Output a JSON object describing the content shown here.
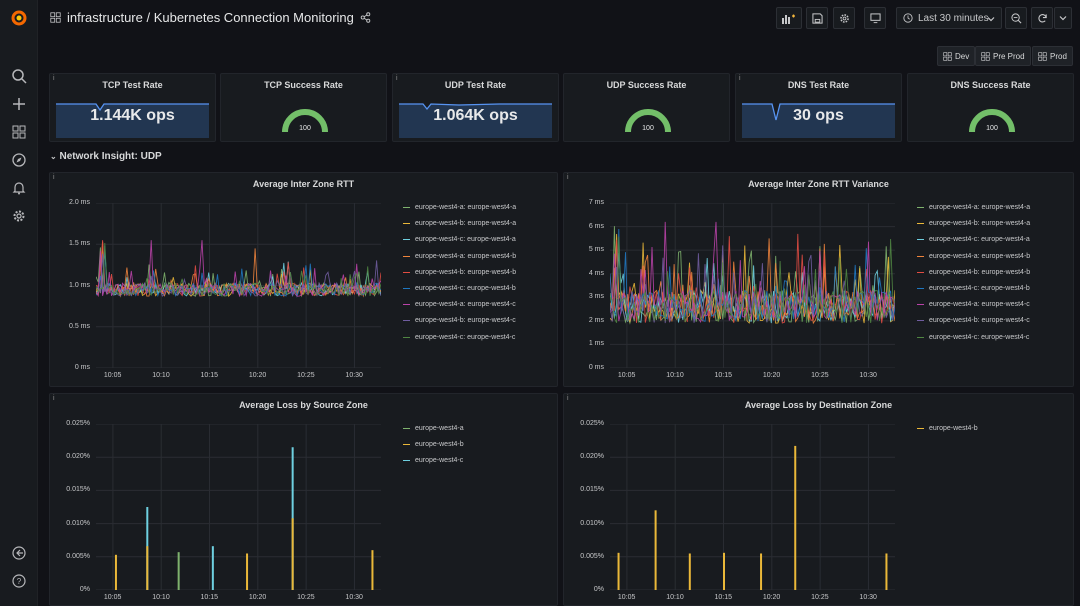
{
  "header": {
    "breadcrumb": "infrastructure / Kubernetes Connection Monitoring",
    "time_range": "Last 30 minutes"
  },
  "env_buttons": [
    "Dev",
    "Pre Prod",
    "Prod"
  ],
  "stat_panels": [
    {
      "title": "TCP Test Rate",
      "value": "1.144K ops",
      "kind": "sparkline"
    },
    {
      "title": "TCP Success Rate",
      "value": "100",
      "kind": "gauge"
    },
    {
      "title": "UDP Test Rate",
      "value": "1.064K ops",
      "kind": "sparkline"
    },
    {
      "title": "UDP Success Rate",
      "value": "100",
      "kind": "gauge"
    },
    {
      "title": "DNS Test Rate",
      "value": "30 ops",
      "kind": "sparkline"
    },
    {
      "title": "DNS Success Rate",
      "value": "100",
      "kind": "gauge"
    }
  ],
  "row": {
    "title": "Network Insight: UDP"
  },
  "colors": {
    "green": "#7eb26d",
    "yellow": "#eab839",
    "cyan": "#6ed0e0",
    "orange": "#ef843c",
    "red": "#e24d42",
    "blue": "#1f78c1",
    "pink": "#ba43a9",
    "violet": "#705da0",
    "olive": "#508642",
    "gauge": "#73bf69",
    "accent_blue": "#5794f2"
  },
  "chart_data": [
    {
      "type": "line",
      "title": "Average Inter Zone RTT",
      "yticks": [
        "2.0 ms",
        "1.5 ms",
        "1.0 ms",
        "0.5 ms",
        "0 ms"
      ],
      "ylim": [
        0,
        2.0
      ],
      "xticks": [
        "10:05",
        "10:10",
        "10:15",
        "10:20",
        "10:25",
        "10:30"
      ],
      "series": [
        {
          "name": "europe-west4-a: europe-west4-a",
          "color": "#7eb26d"
        },
        {
          "name": "europe-west4-b: europe-west4-a",
          "color": "#eab839"
        },
        {
          "name": "europe-west4-c: europe-west4-a",
          "color": "#6ed0e0"
        },
        {
          "name": "europe-west4-a: europe-west4-b",
          "color": "#ef843c"
        },
        {
          "name": "europe-west4-b: europe-west4-b",
          "color": "#e24d42"
        },
        {
          "name": "europe-west4-c: europe-west4-b",
          "color": "#1f78c1"
        },
        {
          "name": "europe-west4-a: europe-west4-c",
          "color": "#ba43a9"
        },
        {
          "name": "europe-west4-b: europe-west4-c",
          "color": "#705da0"
        },
        {
          "name": "europe-west4-c: europe-west4-c",
          "color": "#508642"
        }
      ],
      "baseline": 0.95,
      "noise": 0.08,
      "peaks": [
        1.55,
        1.65,
        1.45,
        1.4
      ]
    },
    {
      "type": "line",
      "title": "Average Inter Zone RTT Variance",
      "yticks": [
        "7 ms",
        "6 ms",
        "5 ms",
        "4 ms",
        "3 ms",
        "2 ms",
        "1 ms",
        "0 ms"
      ],
      "ylim": [
        0,
        7
      ],
      "xticks": [
        "10:05",
        "10:10",
        "10:15",
        "10:20",
        "10:25",
        "10:30"
      ],
      "series": [
        {
          "name": "europe-west4-a: europe-west4-a",
          "color": "#7eb26d"
        },
        {
          "name": "europe-west4-b: europe-west4-a",
          "color": "#eab839"
        },
        {
          "name": "europe-west4-c: europe-west4-a",
          "color": "#6ed0e0"
        },
        {
          "name": "europe-west4-a: europe-west4-b",
          "color": "#ef843c"
        },
        {
          "name": "europe-west4-b: europe-west4-b",
          "color": "#e24d42"
        },
        {
          "name": "europe-west4-c: europe-west4-b",
          "color": "#1f78c1"
        },
        {
          "name": "europe-west4-a: europe-west4-c",
          "color": "#ba43a9"
        },
        {
          "name": "europe-west4-b: europe-west4-c",
          "color": "#705da0"
        },
        {
          "name": "europe-west4-c: europe-west4-c",
          "color": "#508642"
        }
      ],
      "baseline": 2.6,
      "noise": 0.7,
      "peaks": [
        6.2,
        6.0,
        5.5,
        5.0
      ]
    },
    {
      "type": "bar",
      "title": "Average Loss by Source Zone",
      "yticks": [
        "0.025%",
        "0.020%",
        "0.015%",
        "0.010%",
        "0.005%",
        "0%"
      ],
      "ylim": [
        0,
        0.025
      ],
      "xticks": [
        "10:05",
        "10:10",
        "10:15",
        "10:20",
        "10:25",
        "10:30"
      ],
      "series": [
        {
          "name": "europe-west4-a",
          "color": "#7eb26d"
        },
        {
          "name": "europe-west4-b",
          "color": "#eab839"
        },
        {
          "name": "europe-west4-c",
          "color": "#6ed0e0"
        }
      ],
      "bars": [
        {
          "t": 0.07,
          "v": 0.0053,
          "s": 1
        },
        {
          "t": 0.18,
          "v": 0.0125,
          "s": 2
        },
        {
          "t": 0.18,
          "v": 0.0066,
          "s": 1
        },
        {
          "t": 0.29,
          "v": 0.0057,
          "s": 0
        },
        {
          "t": 0.41,
          "v": 0.0066,
          "s": 2
        },
        {
          "t": 0.53,
          "v": 0.0055,
          "s": 1
        },
        {
          "t": 0.69,
          "v": 0.0215,
          "s": 2
        },
        {
          "t": 0.69,
          "v": 0.0108,
          "s": 1
        },
        {
          "t": 0.97,
          "v": 0.006,
          "s": 1
        }
      ]
    },
    {
      "type": "bar",
      "title": "Average Loss by Destination Zone",
      "yticks": [
        "0.025%",
        "0.020%",
        "0.015%",
        "0.010%",
        "0.005%",
        "0%"
      ],
      "ylim": [
        0,
        0.025
      ],
      "xticks": [
        "10:05",
        "10:10",
        "10:15",
        "10:20",
        "10:25",
        "10:30"
      ],
      "series": [
        {
          "name": "europe-west4-b",
          "color": "#eab839"
        }
      ],
      "bars": [
        {
          "t": 0.03,
          "v": 0.0056,
          "s": 0
        },
        {
          "t": 0.16,
          "v": 0.012,
          "s": 0
        },
        {
          "t": 0.28,
          "v": 0.0055,
          "s": 0
        },
        {
          "t": 0.4,
          "v": 0.0056,
          "s": 0
        },
        {
          "t": 0.53,
          "v": 0.0055,
          "s": 0
        },
        {
          "t": 0.65,
          "v": 0.0217,
          "s": 0
        },
        {
          "t": 0.97,
          "v": 0.0055,
          "s": 0
        }
      ]
    }
  ]
}
